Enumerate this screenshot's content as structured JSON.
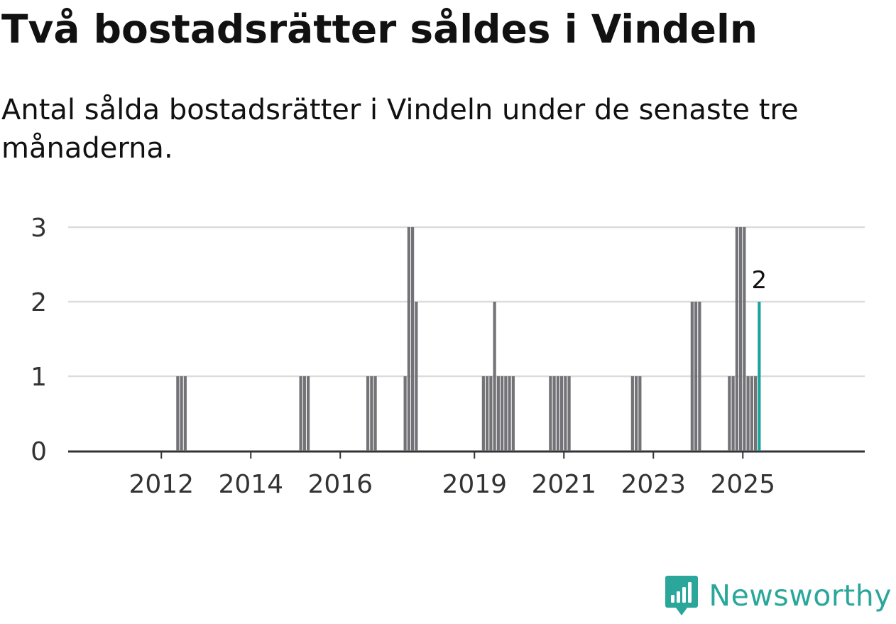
{
  "title": "Två bostadsrätter såldes i Vindeln",
  "subtitle": "Antal sålda bostadsrätter i Vindeln under de senaste tre månaderna.",
  "brand": {
    "name": "Newsworthy",
    "icon": "newsworthy-chart-icon",
    "color": "#2aa79a"
  },
  "chart_data": {
    "type": "bar",
    "x_unit": "month",
    "ylim": [
      0,
      3
    ],
    "yticks": [
      0,
      1,
      2,
      3
    ],
    "xticks": [
      "2012",
      "2014",
      "2016",
      "2019",
      "2021",
      "2023",
      "2025"
    ],
    "xtick_positions": [
      "2012-01",
      "2014-01",
      "2016-01",
      "2019-01",
      "2021-01",
      "2023-01",
      "2025-01"
    ],
    "grid": true,
    "bar_color": "#727277",
    "highlight_color": "#1aa39a",
    "values": [
      {
        "x": "2012-05",
        "y": 1
      },
      {
        "x": "2012-06",
        "y": 1
      },
      {
        "x": "2012-07",
        "y": 1
      },
      {
        "x": "2015-02",
        "y": 1
      },
      {
        "x": "2015-03",
        "y": 1
      },
      {
        "x": "2015-04",
        "y": 1
      },
      {
        "x": "2016-08",
        "y": 1
      },
      {
        "x": "2016-09",
        "y": 1
      },
      {
        "x": "2016-10",
        "y": 1
      },
      {
        "x": "2017-06",
        "y": 1
      },
      {
        "x": "2017-07",
        "y": 3
      },
      {
        "x": "2017-08",
        "y": 3
      },
      {
        "x": "2017-09",
        "y": 2
      },
      {
        "x": "2019-03",
        "y": 1
      },
      {
        "x": "2019-04",
        "y": 1
      },
      {
        "x": "2019-05",
        "y": 1
      },
      {
        "x": "2019-06",
        "y": 2
      },
      {
        "x": "2019-07",
        "y": 1
      },
      {
        "x": "2019-08",
        "y": 1
      },
      {
        "x": "2019-09",
        "y": 1
      },
      {
        "x": "2019-10",
        "y": 1
      },
      {
        "x": "2019-11",
        "y": 1
      },
      {
        "x": "2020-09",
        "y": 1
      },
      {
        "x": "2020-10",
        "y": 1
      },
      {
        "x": "2020-11",
        "y": 1
      },
      {
        "x": "2020-12",
        "y": 1
      },
      {
        "x": "2021-01",
        "y": 1
      },
      {
        "x": "2021-02",
        "y": 1
      },
      {
        "x": "2022-07",
        "y": 1
      },
      {
        "x": "2022-08",
        "y": 1
      },
      {
        "x": "2022-09",
        "y": 1
      },
      {
        "x": "2023-11",
        "y": 2
      },
      {
        "x": "2023-12",
        "y": 2
      },
      {
        "x": "2024-01",
        "y": 2
      },
      {
        "x": "2024-09",
        "y": 1
      },
      {
        "x": "2024-10",
        "y": 1
      },
      {
        "x": "2024-11",
        "y": 3
      },
      {
        "x": "2024-12",
        "y": 3
      },
      {
        "x": "2025-01",
        "y": 3
      },
      {
        "x": "2025-02",
        "y": 1
      },
      {
        "x": "2025-03",
        "y": 1
      },
      {
        "x": "2025-04",
        "y": 1
      },
      {
        "x": "2025-05",
        "y": 2,
        "highlight": true,
        "label": "2"
      }
    ]
  }
}
